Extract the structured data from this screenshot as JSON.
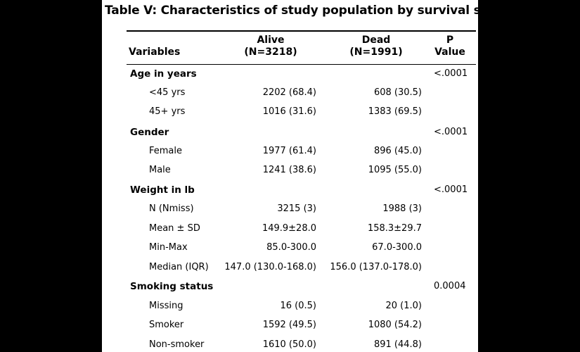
{
  "title": "Table V: Characteristics of study population by survival status.",
  "headers": {
    "variables": "Variables",
    "alive": [
      "Alive",
      "(N=3218)"
    ],
    "dead": [
      "Dead",
      "(N=1991)"
    ],
    "pvalue": [
      "P",
      "Value"
    ]
  },
  "rows": [
    {
      "kind": "section",
      "label": "Age in years",
      "alive": "",
      "dead": "",
      "p": "<.0001"
    },
    {
      "kind": "sub",
      "label": "<45 yrs",
      "alive": "2202 (68.4)",
      "dead": "608 (30.5)",
      "p": ""
    },
    {
      "kind": "sub",
      "label": "45+ yrs",
      "alive": "1016 (31.6)",
      "dead": "1383 (69.5)",
      "p": ""
    },
    {
      "kind": "section",
      "label": "Gender",
      "alive": "",
      "dead": "",
      "p": "<.0001"
    },
    {
      "kind": "sub",
      "label": "Female",
      "alive": "1977 (61.4)",
      "dead": "896 (45.0)",
      "p": ""
    },
    {
      "kind": "sub",
      "label": "Male",
      "alive": "1241 (38.6)",
      "dead": "1095 (55.0)",
      "p": ""
    },
    {
      "kind": "section",
      "label": "Weight in lb",
      "alive": "",
      "dead": "",
      "p": "<.0001"
    },
    {
      "kind": "sub",
      "label": "N (Nmiss)",
      "alive": "3215 (3)",
      "dead": "1988 (3)",
      "p": ""
    },
    {
      "kind": "sub",
      "label": "Mean ± SD",
      "alive": "149.9±28.0",
      "dead": "158.3±29.7",
      "p": ""
    },
    {
      "kind": "sub",
      "label": "Min-Max",
      "alive": "85.0-300.0",
      "dead": "67.0-300.0",
      "p": ""
    },
    {
      "kind": "sub",
      "label": "Median (IQR)",
      "alive": "147.0 (130.0-168.0)",
      "dead": "156.0 (137.0-178.0)",
      "p": ""
    },
    {
      "kind": "section",
      "label": "Smoking status",
      "alive": "",
      "dead": "",
      "p": "0.0004"
    },
    {
      "kind": "sub",
      "label": "Missing",
      "alive": "16 (0.5)",
      "dead": "20 (1.0)",
      "p": ""
    },
    {
      "kind": "sub",
      "label": "Smoker",
      "alive": "1592 (49.5)",
      "dead": "1080 (54.2)",
      "p": ""
    },
    {
      "kind": "sub",
      "label": "Non-smoker",
      "alive": "1610 (50.0)",
      "dead": "891 (44.8)",
      "p": ""
    }
  ]
}
